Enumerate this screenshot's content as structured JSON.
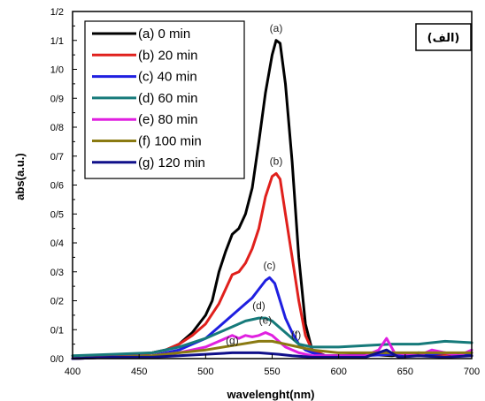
{
  "chart_data": {
    "type": "line",
    "xlabel": "wavelenght(nm)",
    "ylabel": "abs(a.u.)",
    "xlim": [
      400,
      700
    ],
    "ylim": [
      0,
      1.2
    ],
    "x_ticks": [
      "400",
      "450",
      "500",
      "550",
      "600",
      "650",
      "700"
    ],
    "y_ticks": [
      "0/0",
      "0/1",
      "0/2",
      "0/3",
      "0/4",
      "0/5",
      "0/6",
      "0/7",
      "0/8",
      "0/9",
      "1/0",
      "1/1",
      "1/2"
    ],
    "panel_tag": "(الف)",
    "legend_position": "top-left",
    "series": [
      {
        "name": "(a) 0 min",
        "label": "(a)",
        "color": "#000000",
        "x": [
          400,
          420,
          440,
          460,
          470,
          480,
          490,
          500,
          505,
          510,
          515,
          520,
          525,
          530,
          535,
          540,
          545,
          550,
          553,
          556,
          560,
          565,
          570,
          575,
          580,
          590,
          600,
          620,
          640,
          660,
          680,
          700
        ],
        "y": [
          0.0,
          0.005,
          0.01,
          0.02,
          0.03,
          0.05,
          0.09,
          0.15,
          0.2,
          0.3,
          0.37,
          0.43,
          0.45,
          0.5,
          0.59,
          0.75,
          0.92,
          1.05,
          1.1,
          1.09,
          0.95,
          0.68,
          0.35,
          0.12,
          0.03,
          0.01,
          0.01,
          0.015,
          0.01,
          0.02,
          0.015,
          0.02
        ]
      },
      {
        "name": "(b) 20 min",
        "label": "(b)",
        "color": "#e0201c",
        "x": [
          400,
          420,
          440,
          460,
          470,
          480,
          490,
          500,
          510,
          515,
          520,
          525,
          530,
          535,
          540,
          545,
          550,
          553,
          556,
          560,
          565,
          570,
          575,
          580,
          590,
          600,
          620,
          640,
          660,
          680,
          700
        ],
        "y": [
          0.0,
          0.005,
          0.01,
          0.02,
          0.03,
          0.05,
          0.08,
          0.12,
          0.19,
          0.24,
          0.29,
          0.3,
          0.33,
          0.38,
          0.45,
          0.56,
          0.63,
          0.64,
          0.62,
          0.5,
          0.35,
          0.2,
          0.08,
          0.03,
          0.01,
          0.01,
          0.01,
          0.02,
          0.01,
          0.015,
          0.01
        ]
      },
      {
        "name": "(c) 40 min",
        "label": "(c)",
        "color": "#1f1fe0",
        "x": [
          400,
          430,
          460,
          480,
          490,
          500,
          510,
          520,
          530,
          535,
          540,
          545,
          548,
          552,
          556,
          560,
          565,
          570,
          575,
          580,
          590,
          600,
          620,
          640,
          660,
          680,
          700
        ],
        "y": [
          0.0,
          0.005,
          0.01,
          0.03,
          0.05,
          0.07,
          0.11,
          0.15,
          0.19,
          0.21,
          0.24,
          0.27,
          0.28,
          0.26,
          0.2,
          0.14,
          0.09,
          0.05,
          0.03,
          0.02,
          0.01,
          0.01,
          0.01,
          0.015,
          0.01,
          0.02,
          0.01
        ]
      },
      {
        "name": "(d) 60 min",
        "label": "(d)",
        "color": "#167a7a",
        "x": [
          400,
          430,
          460,
          480,
          500,
          510,
          520,
          530,
          540,
          545,
          550,
          555,
          560,
          565,
          570,
          580,
          590,
          600,
          620,
          640,
          660,
          680,
          700
        ],
        "y": [
          0.01,
          0.015,
          0.02,
          0.04,
          0.07,
          0.09,
          0.11,
          0.13,
          0.14,
          0.14,
          0.13,
          0.11,
          0.09,
          0.07,
          0.05,
          0.04,
          0.04,
          0.04,
          0.045,
          0.05,
          0.05,
          0.06,
          0.055
        ]
      },
      {
        "name": "(e) 80 min",
        "label": "(e)",
        "color": "#e020e0",
        "x": [
          400,
          430,
          460,
          480,
          500,
          510,
          520,
          525,
          530,
          535,
          540,
          545,
          550,
          555,
          560,
          570,
          580,
          600,
          620,
          630,
          636,
          642,
          660,
          670,
          680,
          690,
          700
        ],
        "y": [
          0.0,
          0.005,
          0.01,
          0.02,
          0.04,
          0.06,
          0.08,
          0.07,
          0.08,
          0.075,
          0.08,
          0.09,
          0.08,
          0.06,
          0.04,
          0.02,
          0.01,
          0.01,
          0.01,
          0.03,
          0.07,
          0.02,
          0.01,
          0.03,
          0.02,
          0.01,
          0.03
        ]
      },
      {
        "name": "(f) 100 min",
        "label": "(f)",
        "color": "#8a7a12",
        "x": [
          400,
          430,
          460,
          480,
          500,
          520,
          540,
          550,
          560,
          570,
          580,
          600,
          620,
          640,
          660,
          680,
          700
        ],
        "y": [
          0.0,
          0.005,
          0.01,
          0.02,
          0.03,
          0.045,
          0.06,
          0.06,
          0.05,
          0.04,
          0.03,
          0.02,
          0.02,
          0.02,
          0.02,
          0.02,
          0.02
        ]
      },
      {
        "name": "(g) 120 min",
        "label": "(g)",
        "color": "#10108a",
        "x": [
          400,
          430,
          460,
          480,
          500,
          520,
          540,
          555,
          565,
          580,
          600,
          620,
          636,
          645,
          660,
          680,
          700
        ],
        "y": [
          0.0,
          0.005,
          0.005,
          0.01,
          0.015,
          0.02,
          0.02,
          0.015,
          0.01,
          0.005,
          0.005,
          0.005,
          0.03,
          0.005,
          0.01,
          0.005,
          0.01
        ]
      }
    ]
  }
}
